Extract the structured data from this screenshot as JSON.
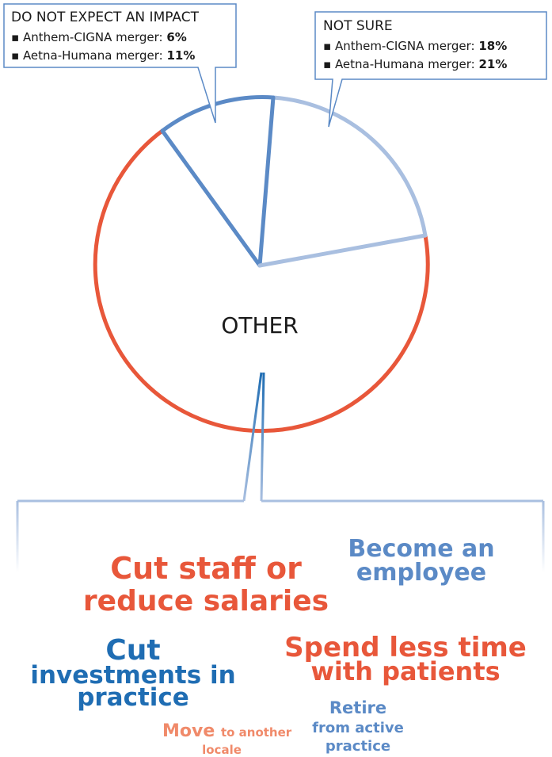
{
  "callouts": [
    {
      "title": "DO NOT EXPECT AN IMPACT",
      "items": [
        {
          "label": "Anthem-CIGNA merger:",
          "value": "6%"
        },
        {
          "label": "Aetna-Humana merger:",
          "value": "11%"
        }
      ]
    },
    {
      "title": "NOT SURE",
      "items": [
        {
          "label": "Anthem-CIGNA merger:",
          "value": "18%"
        },
        {
          "label": "Aetna-Humana merger:",
          "value": "21%"
        }
      ]
    }
  ],
  "center_label": "OTHER",
  "outcomes": [
    {
      "lines": [
        "Cut staff or",
        "reduce salaries"
      ]
    },
    {
      "lines": [
        "Become an",
        "employee"
      ]
    },
    {
      "lines": [
        "Cut",
        "investments in",
        "practice"
      ]
    },
    {
      "lines": [
        "Spend less time",
        "with patients"
      ]
    },
    {
      "lines": [
        "Retire",
        "from active",
        "practice"
      ]
    },
    {
      "lines": [
        "Move",
        "to another",
        "locale"
      ]
    }
  ]
}
